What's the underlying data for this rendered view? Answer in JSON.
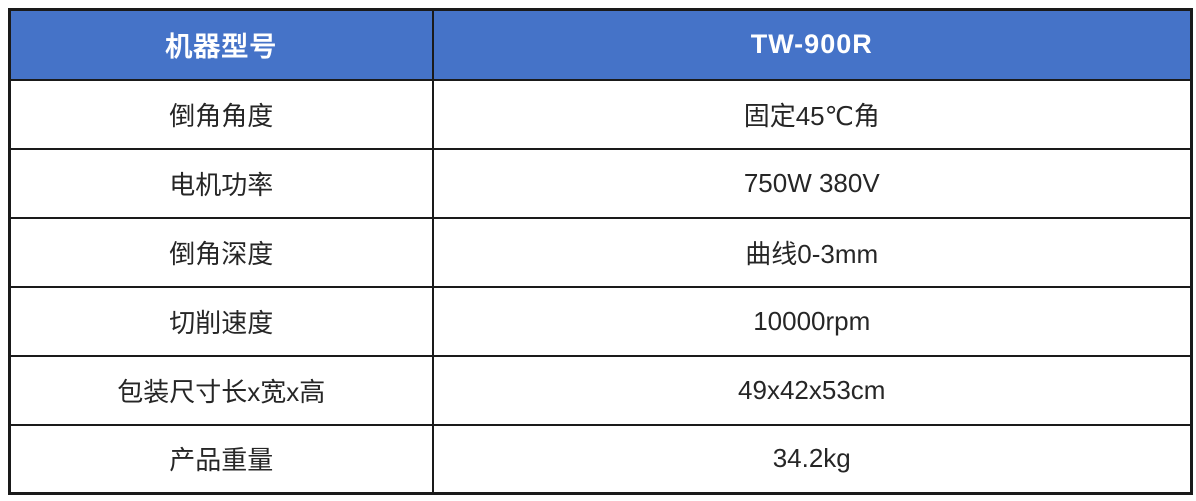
{
  "colors": {
    "header_bg": "#4573C8",
    "header_text": "#FFFFFF",
    "border": "#1A1A1A",
    "body_text": "#262626",
    "page_bg": "#FFFFFF"
  },
  "table": {
    "header": {
      "label": "机器型号",
      "value": "TW-900R"
    },
    "rows": [
      {
        "label": "倒角角度",
        "value": "固定45℃角"
      },
      {
        "label": "电机功率",
        "value": "750W 380V"
      },
      {
        "label": "倒角深度",
        "value": "曲线0-3mm"
      },
      {
        "label": "切削速度",
        "value": "10000rpm"
      },
      {
        "label": "包装尺寸长x宽x高",
        "value": "49x42x53cm"
      },
      {
        "label": "产品重量",
        "value": "34.2kg"
      }
    ]
  }
}
